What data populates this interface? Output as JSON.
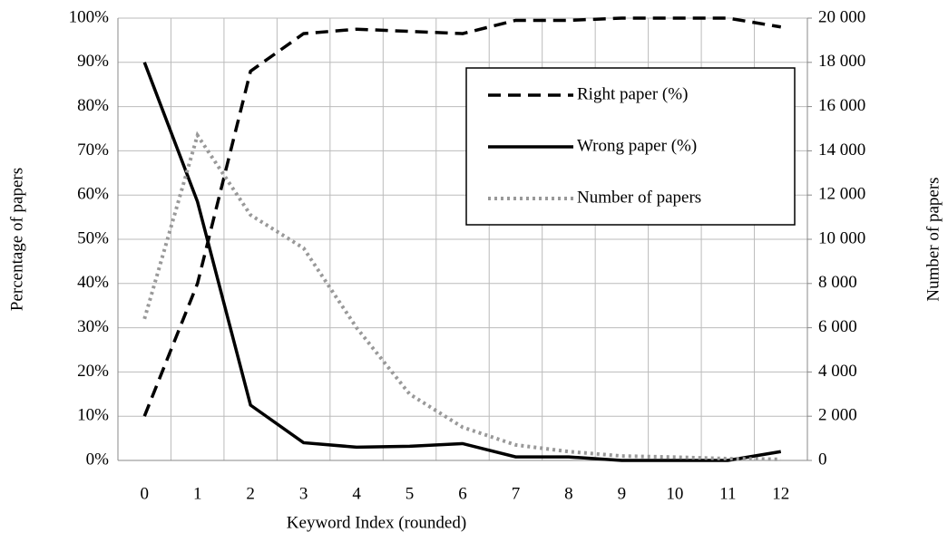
{
  "chart_data": {
    "type": "line",
    "x_label": "Keyword Index (rounded)",
    "y_label": "Percentage of papers",
    "y2_label": "Number of papers",
    "categories": [
      "0",
      "1",
      "2",
      "3",
      "4",
      "5",
      "6",
      "7",
      "8",
      "9",
      "10",
      "11",
      "12"
    ],
    "series": [
      {
        "name": "Right paper (%)",
        "color": "#000000",
        "dash": "dashed",
        "values": [
          10,
          40,
          88,
          96.5,
          97.5,
          97,
          96.5,
          99.5,
          99.5,
          100,
          100,
          100,
          98
        ]
      },
      {
        "name": "Wrong paper (%)",
        "color": "#000000",
        "dash": "solid",
        "values": [
          90,
          58.5,
          12.5,
          4,
          3,
          3.2,
          3.8,
          0.8,
          0.8,
          0,
          0,
          0,
          2
        ]
      },
      {
        "name": "Number of papers",
        "color": "#999999",
        "dash": "dotted",
        "axis": "y2",
        "values": [
          6400,
          14700,
          11100,
          9600,
          6000,
          3000,
          1500,
          700,
          400,
          200,
          150,
          80,
          50
        ]
      }
    ],
    "ylim": [
      0,
      100
    ],
    "yticks": [
      {
        "value": 0,
        "label": "0%"
      },
      {
        "value": 10,
        "label": "10%"
      },
      {
        "value": 20,
        "label": "20%"
      },
      {
        "value": 30,
        "label": "30%"
      },
      {
        "value": 40,
        "label": "40%"
      },
      {
        "value": 50,
        "label": "50%"
      },
      {
        "value": 60,
        "label": "60%"
      },
      {
        "value": 70,
        "label": "70%"
      },
      {
        "value": 80,
        "label": "80%"
      },
      {
        "value": 90,
        "label": "90%"
      },
      {
        "value": 100,
        "label": "100%"
      }
    ],
    "y2lim": [
      0,
      20000
    ],
    "y2ticks": [
      0,
      {
        "value": 2000,
        "label": "2 000"
      },
      {
        "value": 4000,
        "label": "4 000"
      },
      {
        "value": 6000,
        "label": "6 000"
      },
      {
        "value": 8000,
        "label": "8 000"
      },
      {
        "value": 10000,
        "label": "10 000"
      },
      {
        "value": 12000,
        "label": "12 000"
      },
      {
        "value": 14000,
        "label": "14 000"
      },
      {
        "value": 16000,
        "label": "16 000"
      },
      {
        "value": 18000,
        "label": "18 000"
      },
      {
        "value": 20000,
        "label": "20 000"
      }
    ],
    "grid": true,
    "legend": "upper right"
  }
}
